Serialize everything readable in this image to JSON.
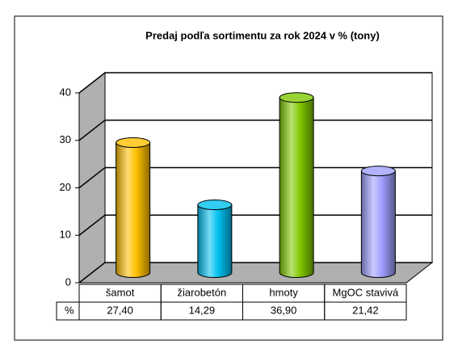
{
  "chart_data": {
    "type": "cylinder",
    "title": "Predaj podľa sortimentu  za rok 2024 v % (tony)",
    "categories": [
      "šamot",
      "žiarobetón",
      "hmoty",
      "MgOC stavivá"
    ],
    "table_label": "%",
    "values": [
      27.4,
      14.29,
      36.9,
      21.42
    ],
    "value_labels": [
      "27,40",
      "14,29",
      "36,90",
      "21,42"
    ],
    "colors": [
      "#ffc000",
      "#00c0f0",
      "#80c800",
      "#9f9fff"
    ],
    "ylim": [
      0,
      40
    ],
    "yticks": [
      0,
      10,
      20,
      30,
      40
    ],
    "grid": true
  }
}
